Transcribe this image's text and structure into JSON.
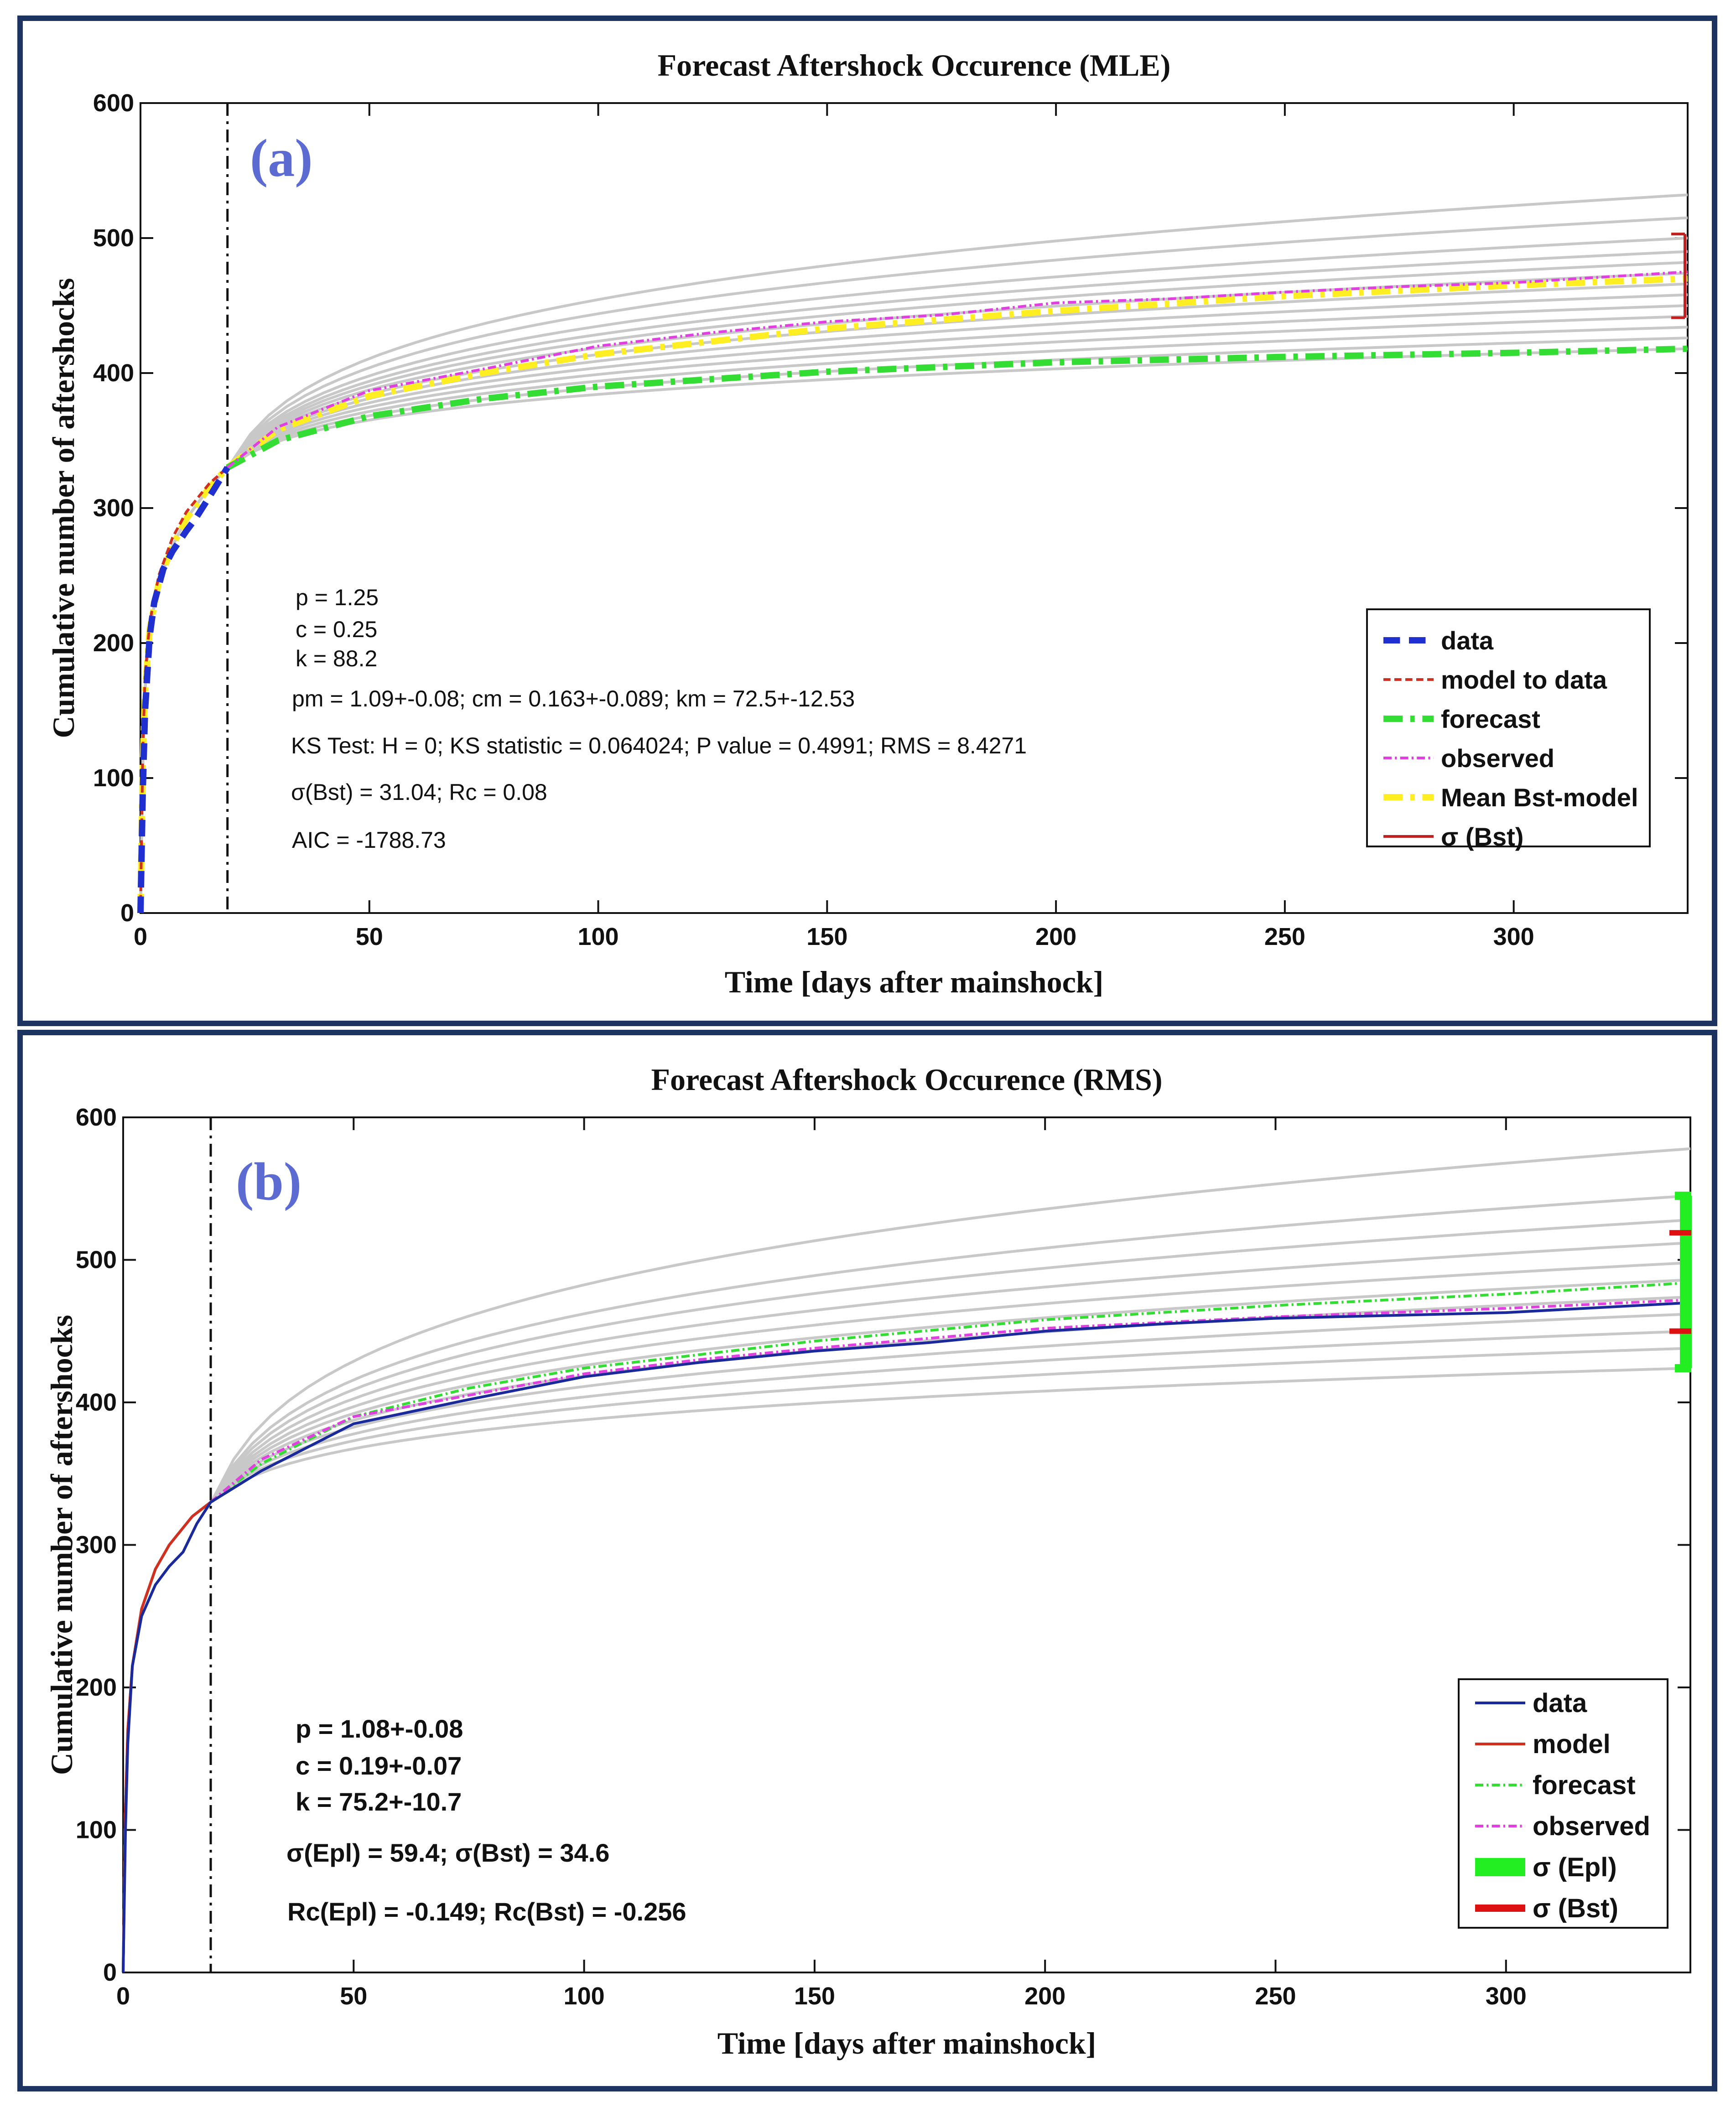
{
  "chart_data": [
    {
      "type": "line",
      "panel_label": "(a)",
      "title": "Forecast Aftershock Occurence (MLE)",
      "xlabel": "Time [days after mainshock]",
      "ylabel": "Cumulative number of aftershocks",
      "xlim": [
        0,
        338
      ],
      "ylim": [
        0,
        600
      ],
      "xticks": [
        0,
        50,
        100,
        150,
        200,
        250,
        300
      ],
      "yticks": [
        0,
        100,
        200,
        300,
        400,
        500,
        600
      ],
      "xtick_labels": [
        "0",
        "50",
        "100",
        "150",
        "200",
        "250",
        "300"
      ],
      "ytick_labels": [
        "0",
        "100",
        "200",
        "300",
        "400",
        "500",
        "600"
      ],
      "vline_x": 19,
      "legend": [
        {
          "label": "data",
          "color": "#1f2fd0",
          "style": "dash",
          "width": 14
        },
        {
          "label": "model to data",
          "color": "#d03020",
          "style": "dash",
          "width": 6
        },
        {
          "label": "forecast",
          "color": "#33dd33",
          "style": "dashdot",
          "width": 14
        },
        {
          "label": "observed",
          "color": "#e040e0",
          "style": "dashdot",
          "width": 6
        },
        {
          "label": "Mean Bst-model",
          "color": "#ffee22",
          "style": "dashdot",
          "width": 14
        },
        {
          "label": "σ (Bst)",
          "color": "#c02020",
          "style": "solid",
          "width": 6
        }
      ],
      "annotations": [
        "p = 1.25",
        "c = 0.25",
        "k = 88.2",
        "pm = 1.09+-0.08; cm = 0.163+-0.089; km = 72.5+-12.53",
        "KS Test: H = 0; KS statistic = 0.064024; P value = 0.4991; RMS = 8.4271",
        "σ(Bst) = 31.04; Rc = 0.08",
        "AIC = -1788.73"
      ],
      "series": [
        {
          "name": "data",
          "x": [
            0,
            0.5,
            1,
            2,
            3,
            5,
            7,
            10,
            12,
            15,
            19
          ],
          "y": [
            0,
            90,
            150,
            205,
            230,
            255,
            268,
            283,
            292,
            308,
            330
          ]
        },
        {
          "name": "model to data",
          "x": [
            0,
            0.5,
            1,
            2,
            4,
            7,
            10,
            15,
            19
          ],
          "y": [
            0,
            120,
            175,
            215,
            250,
            278,
            297,
            318,
            330
          ]
        },
        {
          "name": "forecast",
          "x": [
            19,
            30,
            50,
            75,
            100,
            150,
            200,
            250,
            300,
            338
          ],
          "y": [
            330,
            350,
            368,
            381,
            390,
            401,
            408,
            412,
            415,
            418
          ]
        },
        {
          "name": "observed",
          "x": [
            19,
            30,
            50,
            75,
            100,
            125,
            150,
            175,
            200,
            225,
            250,
            275,
            300,
            338
          ],
          "y": [
            330,
            360,
            387,
            403,
            420,
            430,
            438,
            443,
            452,
            455,
            460,
            464,
            467,
            475
          ]
        },
        {
          "name": "Mean Bst-model",
          "x": [
            0,
            0.5,
            1,
            2,
            4,
            7,
            10,
            15,
            19,
            30,
            50,
            75,
            100,
            150,
            200,
            250,
            300,
            338
          ],
          "y": [
            0,
            110,
            165,
            210,
            245,
            272,
            292,
            315,
            330,
            358,
            383,
            400,
            414,
            433,
            446,
            457,
            465,
            470
          ]
        }
      ],
      "grey_band_endpoints": [
        532,
        515,
        500,
        490,
        482,
        474,
        466,
        458,
        450,
        442,
        434,
        426,
        418
      ],
      "error_bar": {
        "x": 338,
        "center": 472,
        "low": 441,
        "high": 503
      }
    },
    {
      "type": "line",
      "panel_label": "(b)",
      "title": "Forecast Aftershock Occurence (RMS)",
      "xlabel": "Time [days after mainshock]",
      "ylabel": "Cumulative number of aftershocks",
      "xlim": [
        0,
        340
      ],
      "ylim": [
        0,
        600
      ],
      "xticks": [
        0,
        50,
        100,
        150,
        200,
        250,
        300
      ],
      "yticks": [
        0,
        100,
        200,
        300,
        400,
        500,
        600
      ],
      "xtick_labels": [
        "0",
        "50",
        "100",
        "150",
        "200",
        "250",
        "300"
      ],
      "ytick_labels": [
        "0",
        "100",
        "200",
        "300",
        "400",
        "500",
        "600"
      ],
      "vline_x": 19,
      "legend": [
        {
          "label": "data",
          "color": "#1a2a9a",
          "style": "solid",
          "width": 6
        },
        {
          "label": "model",
          "color": "#d03020",
          "style": "solid",
          "width": 6
        },
        {
          "label": "forecast",
          "color": "#33dd33",
          "style": "dashdot",
          "width": 6
        },
        {
          "label": "observed",
          "color": "#e040e0",
          "style": "dashdot",
          "width": 6
        },
        {
          "label": "σ (Epl)",
          "color": "#22ee22",
          "style": "solid",
          "width": 40
        },
        {
          "label": "σ (Bst)",
          "color": "#dd1111",
          "style": "solid",
          "width": 16
        }
      ],
      "annotations": [
        "p = 1.08+-0.08",
        "c = 0.19+-0.07",
        "k = 75.2+-10.7",
        "σ(Epl) = 59.4; σ(Bst) = 34.6",
        "Rc(Epl) = -0.149; Rc(Bst) = -0.256"
      ],
      "series": [
        {
          "name": "data",
          "x": [
            0,
            0.5,
            1,
            2,
            4,
            7,
            10,
            13,
            16,
            19,
            30,
            50,
            75,
            100,
            125,
            150,
            175,
            200,
            225,
            250,
            275,
            300,
            340
          ],
          "y": [
            0,
            100,
            160,
            215,
            250,
            272,
            285,
            295,
            315,
            330,
            352,
            385,
            402,
            418,
            428,
            436,
            442,
            450,
            455,
            459,
            461,
            463,
            470
          ]
        },
        {
          "name": "model",
          "x": [
            0,
            0.5,
            1,
            2,
            4,
            7,
            10,
            15,
            19
          ],
          "y": [
            0,
            115,
            170,
            215,
            255,
            283,
            300,
            320,
            330
          ]
        },
        {
          "name": "forecast",
          "x": [
            19,
            30,
            50,
            75,
            100,
            150,
            200,
            250,
            300,
            340
          ],
          "y": [
            330,
            357,
            390,
            410,
            424,
            443,
            458,
            468,
            476,
            484
          ]
        },
        {
          "name": "observed",
          "x": [
            19,
            30,
            50,
            75,
            100,
            125,
            150,
            175,
            200,
            225,
            250,
            275,
            300,
            340
          ],
          "y": [
            330,
            360,
            390,
            405,
            420,
            430,
            438,
            445,
            452,
            456,
            460,
            463,
            466,
            472
          ]
        }
      ],
      "grey_band_endpoints": [
        578,
        545,
        528,
        512,
        498,
        486,
        474,
        462,
        450,
        438,
        424
      ],
      "error_bars": [
        {
          "name": "σ (Epl)",
          "x": 340,
          "low": 424,
          "high": 545
        },
        {
          "name": "σ (Bst)",
          "x": 340,
          "low": 450,
          "high": 519
        }
      ]
    }
  ]
}
